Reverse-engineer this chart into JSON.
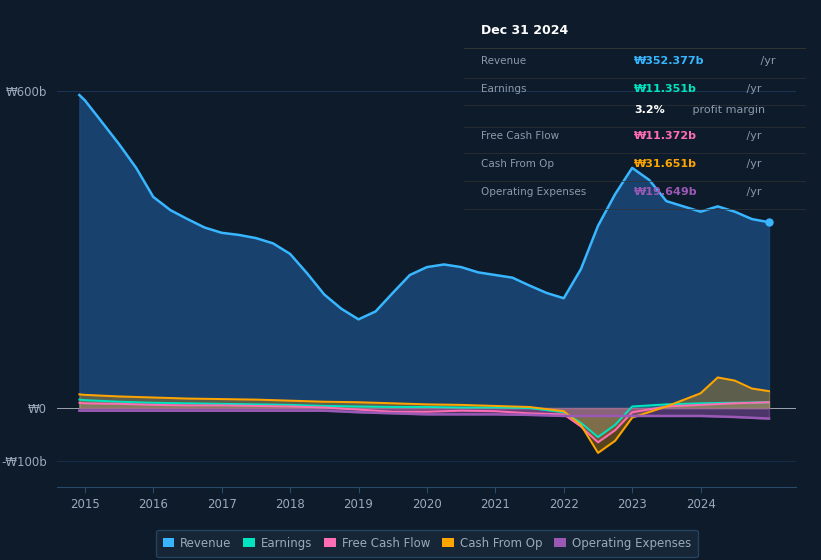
{
  "bg_color": "#0d1b2a",
  "plot_bg_color": "#0d1b2a",
  "text_color": "#9aaabb",
  "ylim": [
    -150,
    720
  ],
  "ytick_positions": [
    -100,
    0,
    600
  ],
  "ytick_labels": [
    "-₩100b",
    "₩0",
    "₩600b"
  ],
  "xlim": [
    2014.6,
    2025.4
  ],
  "xticks": [
    2015,
    2016,
    2017,
    2018,
    2019,
    2020,
    2021,
    2022,
    2023,
    2024
  ],
  "legend_items": [
    {
      "label": "Revenue",
      "color": "#38b6ff"
    },
    {
      "label": "Earnings",
      "color": "#00e5c0"
    },
    {
      "label": "Free Cash Flow",
      "color": "#ff6eb4"
    },
    {
      "label": "Cash From Op",
      "color": "#ffa500"
    },
    {
      "label": "Operating Expenses",
      "color": "#9b59b6"
    }
  ],
  "info_box": {
    "title": "Dec 31 2024",
    "rows": [
      {
        "label": "Revenue",
        "value": "₩352.377b",
        "suffix": " /yr",
        "value_color": "#38b6ff"
      },
      {
        "label": "Earnings",
        "value": "₩11.351b",
        "suffix": " /yr",
        "value_color": "#00e5c0"
      },
      {
        "label": "",
        "value": "3.2%",
        "suffix": " profit margin",
        "value_color": "#ffffff"
      },
      {
        "label": "Free Cash Flow",
        "value": "₩11.372b",
        "suffix": " /yr",
        "value_color": "#ff6eb4"
      },
      {
        "label": "Cash From Op",
        "value": "₩31.651b",
        "suffix": " /yr",
        "value_color": "#ffa500"
      },
      {
        "label": "Operating Expenses",
        "value": "₩19.649b",
        "suffix": " /yr",
        "value_color": "#9b59b6"
      }
    ]
  },
  "revenue_x": [
    2014.92,
    2015.0,
    2015.2,
    2015.5,
    2015.75,
    2016.0,
    2016.25,
    2016.5,
    2016.75,
    2017.0,
    2017.25,
    2017.5,
    2017.75,
    2018.0,
    2018.25,
    2018.5,
    2018.75,
    2019.0,
    2019.25,
    2019.5,
    2019.75,
    2020.0,
    2020.25,
    2020.5,
    2020.75,
    2021.0,
    2021.25,
    2021.5,
    2021.75,
    2022.0,
    2022.25,
    2022.5,
    2022.75,
    2023.0,
    2023.25,
    2023.5,
    2023.75,
    2024.0,
    2024.25,
    2024.5,
    2024.75,
    2025.0
  ],
  "revenue_y": [
    593,
    583,
    550,
    500,
    455,
    400,
    375,
    358,
    342,
    332,
    328,
    322,
    312,
    292,
    255,
    215,
    188,
    168,
    183,
    218,
    252,
    267,
    272,
    267,
    257,
    252,
    247,
    232,
    218,
    208,
    263,
    345,
    405,
    455,
    432,
    392,
    382,
    372,
    382,
    372,
    358,
    352
  ],
  "earnings_x": [
    2014.92,
    2015.0,
    2015.5,
    2016.0,
    2016.5,
    2017.0,
    2017.5,
    2018.0,
    2018.5,
    2019.0,
    2019.5,
    2020.0,
    2020.5,
    2021.0,
    2021.5,
    2022.0,
    2022.25,
    2022.5,
    2022.75,
    2023.0,
    2023.5,
    2024.0,
    2024.5,
    2025.0
  ],
  "earnings_y": [
    16,
    15,
    12,
    10,
    9,
    8,
    7,
    6,
    4,
    3,
    2,
    2,
    1,
    1,
    0,
    -8,
    -28,
    -55,
    -32,
    3,
    7,
    9,
    10,
    11
  ],
  "fcf_x": [
    2014.92,
    2015.0,
    2015.5,
    2016.0,
    2016.5,
    2017.0,
    2017.5,
    2018.0,
    2018.5,
    2019.0,
    2019.25,
    2019.5,
    2020.0,
    2020.5,
    2021.0,
    2021.5,
    2022.0,
    2022.25,
    2022.5,
    2022.75,
    2023.0,
    2023.5,
    2024.0,
    2024.5,
    2025.0
  ],
  "fcf_y": [
    10,
    9,
    8,
    6,
    5,
    5,
    4,
    3,
    1,
    -3,
    -5,
    -7,
    -7,
    -5,
    -6,
    -10,
    -12,
    -35,
    -65,
    -42,
    -8,
    3,
    6,
    9,
    11
  ],
  "cfo_x": [
    2014.92,
    2015.0,
    2015.5,
    2016.0,
    2016.5,
    2017.0,
    2017.5,
    2018.0,
    2018.5,
    2019.0,
    2019.5,
    2020.0,
    2020.5,
    2021.0,
    2021.5,
    2022.0,
    2022.25,
    2022.5,
    2022.75,
    2023.0,
    2023.5,
    2024.0,
    2024.25,
    2024.5,
    2024.75,
    2025.0
  ],
  "cfo_y": [
    26,
    25,
    22,
    20,
    18,
    17,
    16,
    14,
    12,
    11,
    9,
    7,
    6,
    4,
    2,
    -6,
    -32,
    -85,
    -62,
    -18,
    3,
    28,
    58,
    52,
    37,
    32
  ],
  "opex_x": [
    2014.92,
    2015.0,
    2015.5,
    2016.0,
    2016.5,
    2017.0,
    2017.5,
    2018.0,
    2018.5,
    2019.0,
    2019.5,
    2020.0,
    2020.5,
    2021.0,
    2021.5,
    2021.75,
    2022.0,
    2022.25,
    2022.5,
    2022.75,
    2023.0,
    2023.5,
    2024.0,
    2024.5,
    2025.0
  ],
  "opex_y": [
    -5,
    -5,
    -5,
    -5,
    -5,
    -5,
    -5,
    -5,
    -5,
    -8,
    -10,
    -12,
    -12,
    -12,
    -13,
    -14,
    -15,
    -15,
    -15,
    -15,
    -15,
    -15,
    -15,
    -17,
    -20
  ]
}
